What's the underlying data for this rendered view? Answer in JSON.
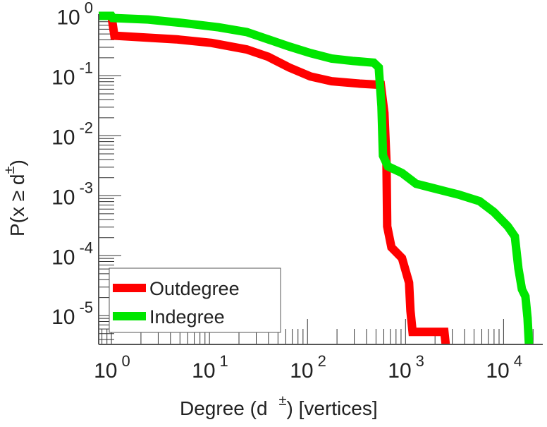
{
  "chart_data": {
    "type": "line",
    "title": "",
    "xlabel": "Degree (d ±) [vertices]",
    "xlabel_main": "Degree (d",
    "xlabel_sup": "±",
    "xlabel_tail": ") [vertices]",
    "ylabel_main": "P(x ≥ d",
    "ylabel_sup": "±",
    "ylabel_tail": ")",
    "xscale": "log",
    "yscale": "log",
    "xlim_log10": [
      -0.13,
      4.4
    ],
    "ylim_log10": [
      -5.48,
      0.03
    ],
    "x_ticks": [
      {
        "base": "10",
        "exp": "0",
        "log": 0
      },
      {
        "base": "10",
        "exp": "1",
        "log": 1
      },
      {
        "base": "10",
        "exp": "2",
        "log": 2
      },
      {
        "base": "10",
        "exp": "3",
        "log": 3
      },
      {
        "base": "10",
        "exp": "4",
        "log": 4
      }
    ],
    "y_ticks": [
      {
        "base": "10",
        "exp": "0",
        "log": 0
      },
      {
        "base": "10",
        "exp": "-1",
        "log": -1
      },
      {
        "base": "10",
        "exp": "-2",
        "log": -2
      },
      {
        "base": "10",
        "exp": "-3",
        "log": -3
      },
      {
        "base": "10",
        "exp": "-4",
        "log": -4
      },
      {
        "base": "10",
        "exp": "-5",
        "log": -5
      }
    ],
    "legend_position": "bottom-left",
    "series": [
      {
        "name": "Outdegree",
        "color": "#ff0000",
        "points_log10": [
          [
            0,
            0
          ],
          [
            0.03,
            -0.33
          ],
          [
            0.662,
            -0.39
          ],
          [
            1.022,
            -0.45
          ],
          [
            1.381,
            -0.56
          ],
          [
            1.597,
            -0.68
          ],
          [
            1.813,
            -0.86
          ],
          [
            2.029,
            -1.01
          ],
          [
            2.245,
            -1.09
          ],
          [
            2.532,
            -1.13
          ],
          [
            2.748,
            -1.15
          ],
          [
            2.784,
            -1.62
          ],
          [
            2.806,
            -2.45
          ],
          [
            2.813,
            -3.51
          ],
          [
            2.856,
            -3.86
          ],
          [
            2.964,
            -4.04
          ],
          [
            3.036,
            -4.45
          ],
          [
            3.05,
            -4.92
          ],
          [
            3.072,
            -5.27
          ],
          [
            3.396,
            -5.27
          ],
          [
            3.41,
            -5.48
          ]
        ]
      },
      {
        "name": "Indegree",
        "color": "#00e600",
        "points_log10": [
          [
            -0.13,
            0
          ],
          [
            0,
            0
          ],
          [
            0.014,
            -0.035
          ],
          [
            0.374,
            -0.06
          ],
          [
            0.734,
            -0.12
          ],
          [
            1.094,
            -0.19
          ],
          [
            1.381,
            -0.27
          ],
          [
            1.597,
            -0.39
          ],
          [
            1.813,
            -0.51
          ],
          [
            2.029,
            -0.62
          ],
          [
            2.245,
            -0.71
          ],
          [
            2.46,
            -0.75
          ],
          [
            2.676,
            -0.78
          ],
          [
            2.727,
            -0.86
          ],
          [
            2.755,
            -1.51
          ],
          [
            2.77,
            -2.33
          ],
          [
            2.82,
            -2.51
          ],
          [
            2.964,
            -2.62
          ],
          [
            3.108,
            -2.8
          ],
          [
            3.252,
            -2.86
          ],
          [
            3.54,
            -2.98
          ],
          [
            3.755,
            -3.09
          ],
          [
            3.9,
            -3.27
          ],
          [
            4.043,
            -3.51
          ],
          [
            4.115,
            -3.68
          ],
          [
            4.151,
            -4.21
          ],
          [
            4.187,
            -4.56
          ],
          [
            4.223,
            -4.68
          ],
          [
            4.245,
            -5.04
          ],
          [
            4.259,
            -5.48
          ]
        ]
      }
    ]
  }
}
